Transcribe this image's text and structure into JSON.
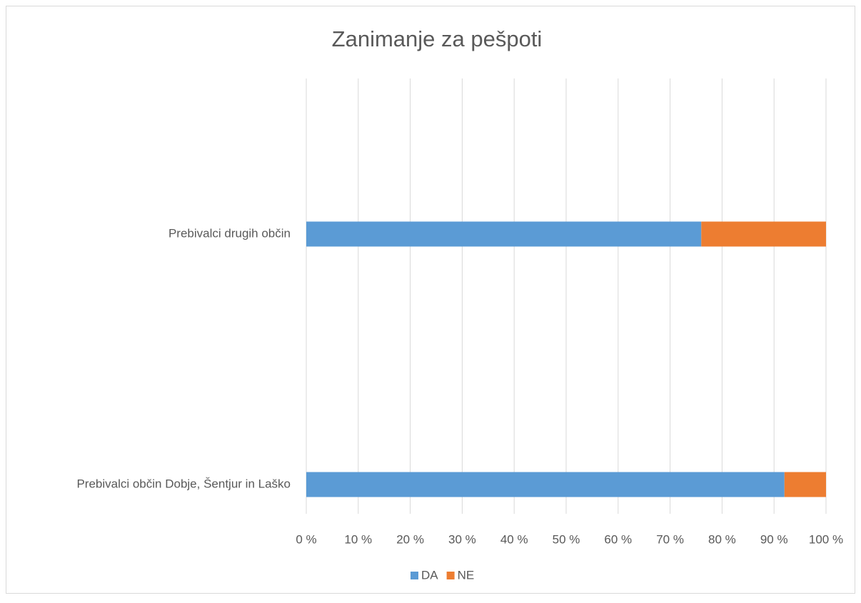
{
  "chart_data": {
    "type": "bar",
    "orientation": "horizontal",
    "stacked": true,
    "title": "Zanimanje za pešpoti",
    "categories": [
      "Prebivalci občin Dobje, Šentjur in Laško",
      "Prebivalci drugih občin"
    ],
    "series": [
      {
        "name": "DA",
        "color": "#5b9bd5",
        "values": [
          92,
          76
        ]
      },
      {
        "name": "NE",
        "color": "#ed7d31",
        "values": [
          8,
          24
        ]
      }
    ],
    "xlim": [
      0,
      100
    ],
    "xticks": [
      {
        "value": 0,
        "label": "0 %"
      },
      {
        "value": 10,
        "label": "10 %"
      },
      {
        "value": 20,
        "label": "20 %"
      },
      {
        "value": 30,
        "label": "30 %"
      },
      {
        "value": 40,
        "label": "40 %"
      },
      {
        "value": 50,
        "label": "50 %"
      },
      {
        "value": 60,
        "label": "60 %"
      },
      {
        "value": 70,
        "label": "70 %"
      },
      {
        "value": 80,
        "label": "80 %"
      },
      {
        "value": 90,
        "label": "90 %"
      },
      {
        "value": 100,
        "label": "100 %"
      }
    ],
    "grid": true,
    "legend": "bottom"
  }
}
